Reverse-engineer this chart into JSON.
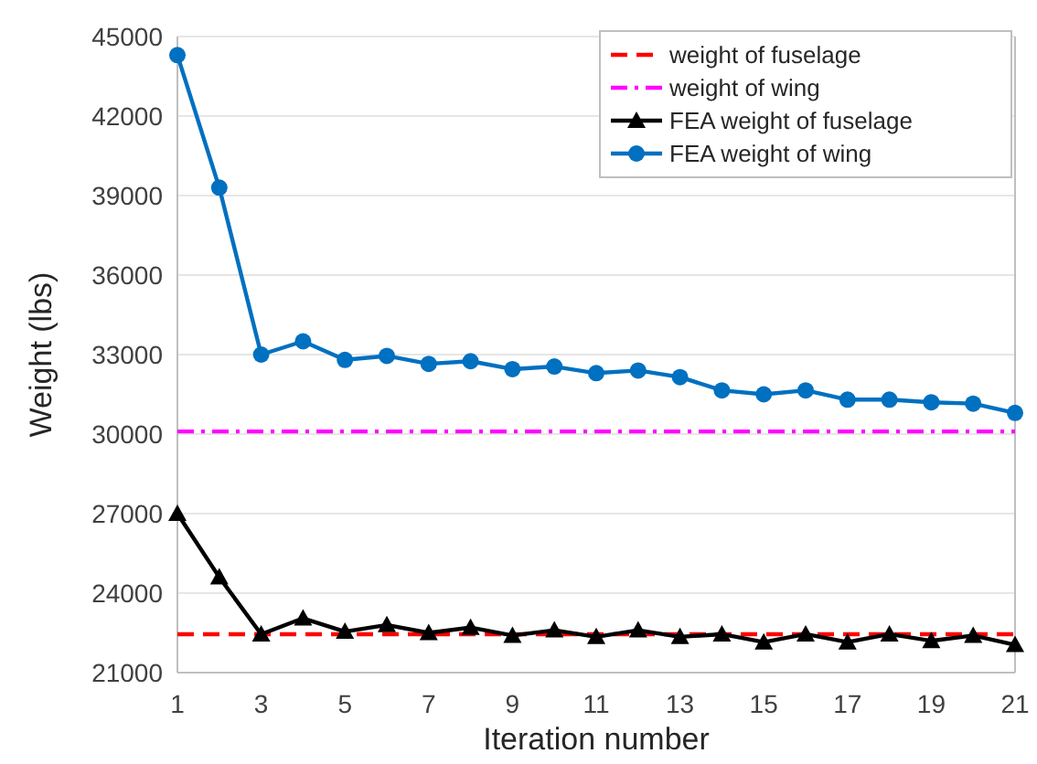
{
  "chart_data": {
    "type": "line",
    "xlabel": "Iteration number",
    "ylabel": "Weight (lbs)",
    "x": [
      1,
      2,
      3,
      4,
      5,
      6,
      7,
      8,
      9,
      10,
      11,
      12,
      13,
      14,
      15,
      16,
      17,
      18,
      19,
      20,
      21
    ],
    "xlim": [
      1,
      21
    ],
    "xticks": [
      1,
      3,
      5,
      7,
      9,
      11,
      13,
      15,
      17,
      19,
      21
    ],
    "ylim": [
      21000,
      45000
    ],
    "yticks": [
      21000,
      24000,
      27000,
      30000,
      33000,
      36000,
      39000,
      42000,
      45000
    ],
    "grid": "y",
    "legend": "top right",
    "ref_lines": [
      {
        "axis": "y",
        "value": 22450,
        "label": "weight of fuselage",
        "color": "#ff0000",
        "line_style": "dashed"
      },
      {
        "axis": "y",
        "value": 30100,
        "label": "weight of wing",
        "color": "#ff00ff",
        "line_style": "dotted"
      }
    ],
    "series": [
      {
        "name": "FEA weight of fuselage",
        "color": "#000000",
        "values": [
          27000,
          24600,
          22450,
          23050,
          22550,
          22800,
          22500,
          22700,
          22400,
          22600,
          22350,
          22600,
          22350,
          22450,
          22150,
          22450,
          22150,
          22450,
          22200,
          22400,
          22050
        ],
        "line_style": "solid",
        "marker": "triangle"
      },
      {
        "name": "FEA weight of wing",
        "color": "#0070c0",
        "values": [
          44300,
          39300,
          33000,
          33500,
          32800,
          32950,
          32650,
          32750,
          32450,
          32550,
          32300,
          32400,
          32150,
          31650,
          31500,
          31650,
          31300,
          31300,
          31200,
          31150,
          30800
        ],
        "line_style": "solid",
        "marker": "circle"
      }
    ]
  }
}
